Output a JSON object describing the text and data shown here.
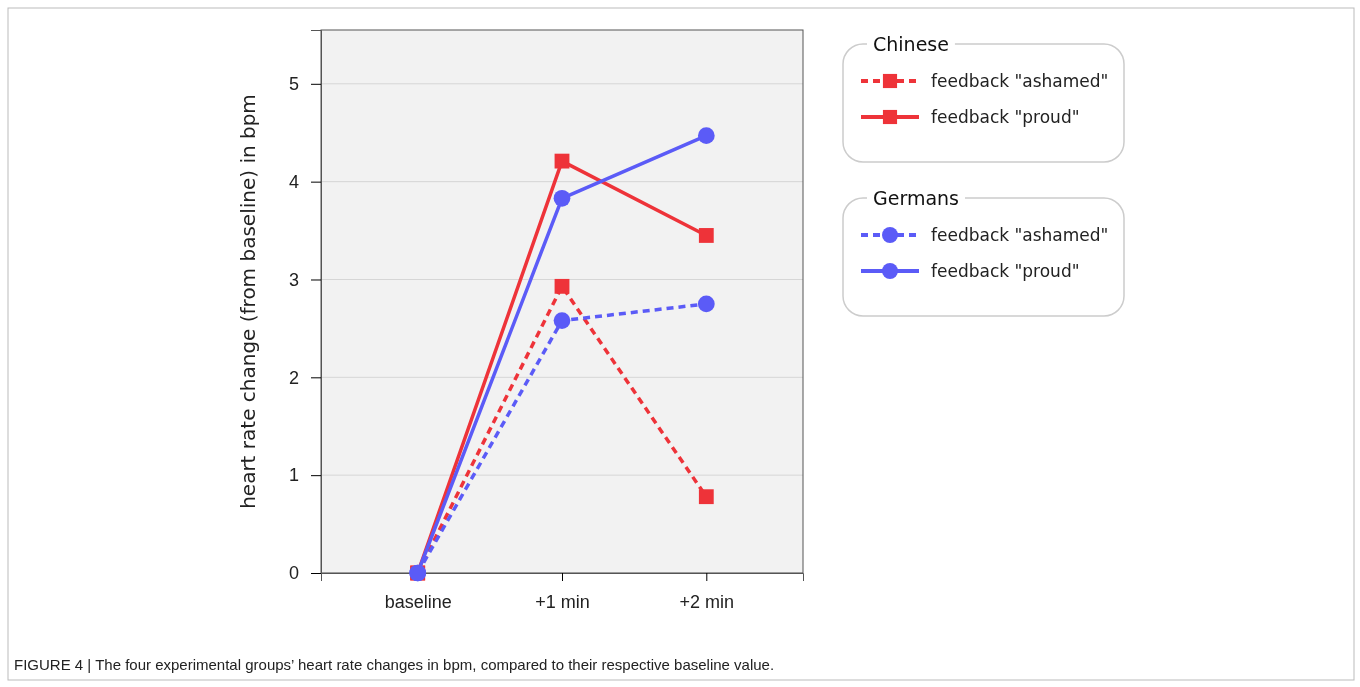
{
  "chart_data": {
    "type": "line",
    "ylabel": "heart rate change (from baseline) in bpm",
    "categories": [
      "baseline",
      "+1 min",
      "+2 min"
    ],
    "ylim": [
      0,
      5.55
    ],
    "yticks": [
      0,
      1,
      2,
      3,
      4,
      5
    ],
    "grid": "y",
    "legend": "right",
    "legend_title": [
      "Chinese",
      "Germans"
    ],
    "series": [
      {
        "name": "feedback \"ashamed\"",
        "color": "#ee3339",
        "marker": "square",
        "line_style": "dashed",
        "values": [
          0,
          2.93,
          0.78
        ]
      },
      {
        "name": "feedback \"proud\"",
        "color": "#ee3339",
        "marker": "square",
        "line_style": "solid",
        "values": [
          0,
          4.21,
          3.45
        ]
      },
      {
        "name": "feedback \"ashamed\"",
        "color": "#5b5bf7",
        "marker": "circle",
        "line_style": "dashed",
        "values": [
          0,
          2.58,
          2.75
        ]
      },
      {
        "name": "feedback \"proud\"",
        "color": "#5b5bf7",
        "marker": "circle",
        "line_style": "solid",
        "values": [
          0,
          3.83,
          4.47
        ]
      }
    ],
    "annotations": [
      "FIGURE 4 | The four experimental groups’ heart rate changes in bpm, compared to their respective baseline value."
    ]
  }
}
